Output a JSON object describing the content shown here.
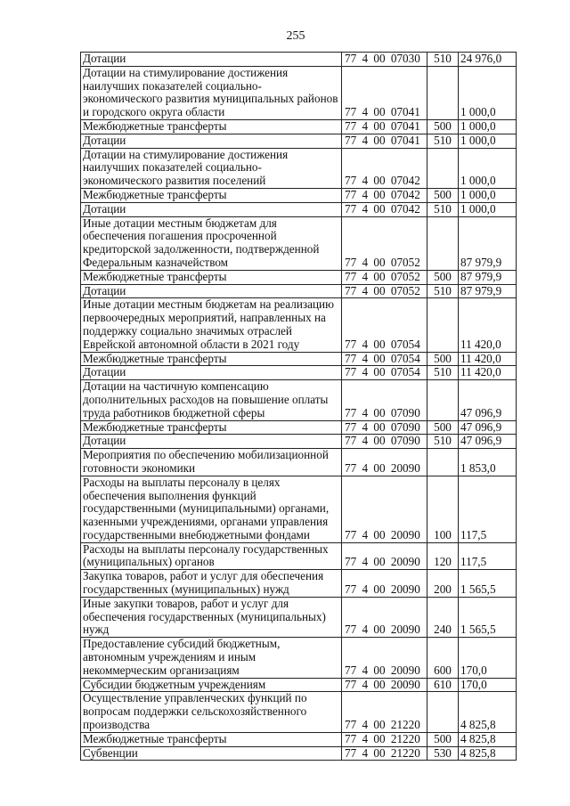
{
  "page_number": "255",
  "rows": [
    {
      "name": "Дотации",
      "code": "77 4 00 07030",
      "vr": "510",
      "amount": "24 976,0"
    },
    {
      "name": "Дотации на стимулирование достижения наилучших показателей социально-экономического развития муниципальных районов и городского округа области",
      "code": "77 4 00 07041",
      "vr": "",
      "amount": "1 000,0"
    },
    {
      "name": "Межбюджетные трансферты",
      "code": "77 4 00 07041",
      "vr": "500",
      "amount": "1 000,0"
    },
    {
      "name": "Дотации",
      "code": "77 4 00 07041",
      "vr": "510",
      "amount": "1 000,0"
    },
    {
      "name": "Дотации на стимулирование достижения наилучших показателей социально-экономического развития поселений",
      "code": "77 4 00 07042",
      "vr": "",
      "amount": "1 000,0"
    },
    {
      "name": "Межбюджетные трансферты",
      "code": "77 4 00 07042",
      "vr": "500",
      "amount": "1 000,0"
    },
    {
      "name": "Дотации",
      "code": "77 4 00 07042",
      "vr": "510",
      "amount": "1 000,0"
    },
    {
      "name": "Иные дотации местным бюджетам для обеспечения погашения просроченной кредиторской задолженности, подтвержденной Федеральным казначейством",
      "code": "77 4 00 07052",
      "vr": "",
      "amount": "87 979,9"
    },
    {
      "name": "Межбюджетные трансферты",
      "code": "77 4 00 07052",
      "vr": "500",
      "amount": "87 979,9"
    },
    {
      "name": "Дотации",
      "code": "77 4 00 07052",
      "vr": "510",
      "amount": "87 979,9"
    },
    {
      "name": "Иные дотации местным бюджетам на реализацию первоочередных мероприятий, направленных на поддержку социально значимых отраслей Еврейской автономной области в 2021 году",
      "code": "77 4 00 07054",
      "vr": "",
      "amount": "11 420,0"
    },
    {
      "name": "Межбюджетные трансферты",
      "code": "77 4 00 07054",
      "vr": "500",
      "amount": "11 420,0"
    },
    {
      "name": "Дотации",
      "code": "77 4 00 07054",
      "vr": "510",
      "amount": "11 420,0"
    },
    {
      "name": "Дотации на частичную компенсацию дополнительных расходов на повышение оплаты труда работников бюджетной сферы",
      "code": "77 4 00 07090",
      "vr": "",
      "amount": "47 096,9"
    },
    {
      "name": "Межбюджетные трансферты",
      "code": "77 4 00 07090",
      "vr": "500",
      "amount": "47 096,9"
    },
    {
      "name": "Дотации",
      "code": "77 4 00 07090",
      "vr": "510",
      "amount": "47 096,9"
    },
    {
      "name": "Мероприятия по обеспечению мобилизационной готовности экономики",
      "code": "77 4 00 20090",
      "vr": "",
      "amount": "1 853,0"
    },
    {
      "name": "Расходы на выплаты персоналу в целях обеспечения выполнения функций государственными (муниципальными) органами, казенными учреждениями, органами управления государственными внебюджетными фондами",
      "code": "77 4 00 20090",
      "vr": "100",
      "amount": "117,5"
    },
    {
      "name": "Расходы на выплаты персоналу государственных (муниципальных) органов",
      "code": "77 4 00 20090",
      "vr": "120",
      "amount": "117,5"
    },
    {
      "name": "Закупка товаров, работ и услуг для обеспечения государственных (муниципальных) нужд",
      "code": "77 4 00 20090",
      "vr": "200",
      "amount": "1 565,5"
    },
    {
      "name": "Иные закупки товаров, работ и услуг для обеспечения государственных (муниципальных) нужд",
      "code": "77 4 00 20090",
      "vr": "240",
      "amount": "1 565,5"
    },
    {
      "name": "Предоставление субсидий бюджетным, автономным учреждениям и иным некоммерческим организациям",
      "code": "77 4 00 20090",
      "vr": "600",
      "amount": "170,0"
    },
    {
      "name": "Субсидии бюджетным учреждениям",
      "code": "77 4 00 20090",
      "vr": "610",
      "amount": "170,0"
    },
    {
      "name": "Осуществление управленческих функций по вопросам поддержки сельскохозяйственного производства",
      "code": "77 4 00 21220",
      "vr": "",
      "amount": "4 825,8"
    },
    {
      "name": "Межбюджетные трансферты",
      "code": "77 4 00 21220",
      "vr": "500",
      "amount": "4 825,8"
    },
    {
      "name": "Субвенции",
      "code": "77 4 00 21220",
      "vr": "530",
      "amount": "4 825,8"
    }
  ]
}
